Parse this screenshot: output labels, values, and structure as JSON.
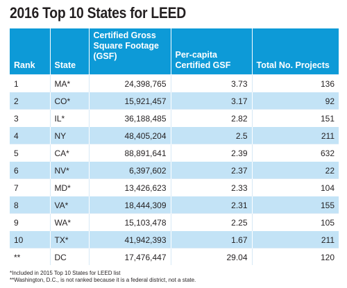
{
  "chart_data": {
    "type": "table",
    "title": "2016 Top 10 States for LEED",
    "columns": [
      "Rank",
      "State",
      "Certified Gross Square Footage (GSF)",
      "Per-capita Certified GSF",
      "Total No. Projects"
    ],
    "rows": [
      [
        "1",
        "MA*",
        "24,398,765",
        "3.73",
        "136"
      ],
      [
        "2",
        "CO*",
        "15,921,457",
        "3.17",
        "92"
      ],
      [
        "3",
        "IL*",
        "36,188,485",
        "2.82",
        "151"
      ],
      [
        "4",
        "NY",
        "48,405,204",
        "2.5",
        "211"
      ],
      [
        "5",
        "CA*",
        "88,891,641",
        "2.39",
        "632"
      ],
      [
        "6",
        "NV*",
        "6,397,602",
        "2.37",
        "22"
      ],
      [
        "7",
        "MD*",
        "13,426,623",
        "2.33",
        "104"
      ],
      [
        "8",
        "VA*",
        "18,444,309",
        "2.31",
        "155"
      ],
      [
        "9",
        "WA*",
        "15,103,478",
        "2.25",
        "105"
      ],
      [
        "10",
        "TX*",
        "41,942,393",
        "1.67",
        "211"
      ],
      [
        "**",
        "DC",
        "17,476,447",
        "29.04",
        "120"
      ]
    ],
    "footnotes": [
      "*Included in 2015 Top 10 States for LEED list",
      "**Washington, D.C., is not ranked because it is a federal district, not a state."
    ]
  },
  "colors": {
    "header_bg": "#0d9ad7",
    "row_stripe": "#c3e3f6",
    "text": "#231f20"
  }
}
